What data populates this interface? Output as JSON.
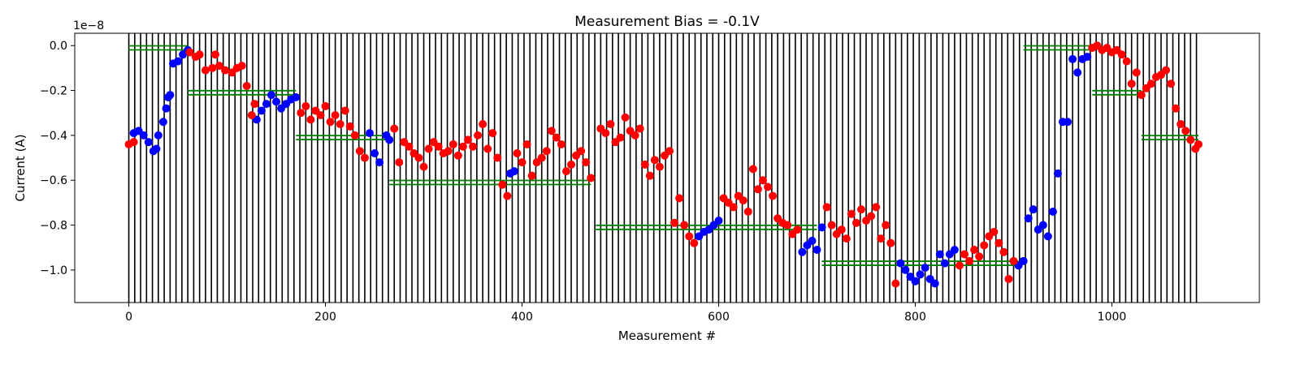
{
  "chart_data": {
    "type": "scatter",
    "title": "Measurement Bias = -0.1V",
    "xlabel": "Measurement #",
    "ylabel": "Current (A)",
    "y_offset_label": "1e−8",
    "xlim": [
      -55,
      1150
    ],
    "ylim": [
      -1.145,
      0.055
    ],
    "y_multiplier": 1e-08,
    "xticks": [
      0,
      200,
      400,
      600,
      800,
      1000
    ],
    "yticks": [
      0.0,
      -0.2,
      -0.4,
      -0.6,
      -0.8,
      -1.0
    ],
    "ytick_labels": [
      "0.0",
      "−0.2",
      "−0.4",
      "−0.6",
      "−0.8",
      "−1.0"
    ],
    "grid": false,
    "vertical_lines": {
      "color": "#000000",
      "start": 0,
      "end": 1088,
      "spacing": 6
    },
    "reference_segments": {
      "color": "#008000",
      "levels": [
        {
          "y": -0.01,
          "x0": 0,
          "x1": 60
        },
        {
          "y": -0.21,
          "x0": 60,
          "x1": 170
        },
        {
          "y": -0.41,
          "x0": 170,
          "x1": 265
        },
        {
          "y": -0.61,
          "x0": 265,
          "x1": 470
        },
        {
          "y": -0.81,
          "x0": 475,
          "x1": 700
        },
        {
          "y": -0.97,
          "x0": 705,
          "x1": 905
        },
        {
          "y": -0.01,
          "x0": 910,
          "x1": 980
        },
        {
          "y": -0.21,
          "x0": 980,
          "x1": 1030
        },
        {
          "y": -0.41,
          "x0": 1030,
          "x1": 1088
        }
      ]
    },
    "series": [
      {
        "color": "#0000ff",
        "points": [
          [
            5,
            -0.39
          ],
          [
            10,
            -0.38
          ],
          [
            15,
            -0.4
          ],
          [
            20,
            -0.43
          ],
          [
            25,
            -0.47
          ],
          [
            28,
            -0.46
          ],
          [
            30,
            -0.4
          ],
          [
            35,
            -0.34
          ],
          [
            38,
            -0.28
          ],
          [
            40,
            -0.23
          ],
          [
            42,
            -0.22
          ],
          [
            45,
            -0.08
          ],
          [
            50,
            -0.07
          ],
          [
            55,
            -0.04
          ],
          [
            60,
            -0.02
          ],
          [
            130,
            -0.33
          ],
          [
            135,
            -0.29
          ],
          [
            140,
            -0.26
          ],
          [
            145,
            -0.22
          ],
          [
            150,
            -0.25
          ],
          [
            155,
            -0.28
          ],
          [
            160,
            -0.26
          ],
          [
            165,
            -0.24
          ],
          [
            170,
            -0.23
          ],
          [
            245,
            -0.39
          ],
          [
            250,
            -0.48
          ],
          [
            255,
            -0.52
          ],
          [
            262,
            -0.4
          ],
          [
            265,
            -0.42
          ],
          [
            388,
            -0.57
          ],
          [
            392,
            -0.56
          ],
          [
            580,
            -0.85
          ],
          [
            585,
            -0.83
          ],
          [
            590,
            -0.82
          ],
          [
            595,
            -0.8
          ],
          [
            600,
            -0.78
          ],
          [
            685,
            -0.92
          ],
          [
            690,
            -0.89
          ],
          [
            695,
            -0.87
          ],
          [
            700,
            -0.91
          ],
          [
            705,
            -0.81
          ],
          [
            785,
            -0.97
          ],
          [
            790,
            -1.0
          ],
          [
            795,
            -1.03
          ],
          [
            800,
            -1.05
          ],
          [
            805,
            -1.02
          ],
          [
            810,
            -0.99
          ],
          [
            815,
            -1.04
          ],
          [
            820,
            -1.06
          ],
          [
            825,
            -0.93
          ],
          [
            830,
            -0.97
          ],
          [
            835,
            -0.93
          ],
          [
            840,
            -0.91
          ],
          [
            905,
            -0.98
          ],
          [
            910,
            -0.96
          ],
          [
            915,
            -0.77
          ],
          [
            920,
            -0.73
          ],
          [
            925,
            -0.82
          ],
          [
            930,
            -0.8
          ],
          [
            935,
            -0.85
          ],
          [
            940,
            -0.74
          ],
          [
            945,
            -0.57
          ],
          [
            950,
            -0.34
          ],
          [
            955,
            -0.34
          ],
          [
            960,
            -0.06
          ],
          [
            965,
            -0.12
          ],
          [
            970,
            -0.06
          ],
          [
            975,
            -0.05
          ]
        ]
      },
      {
        "color": "#ff0000",
        "points": [
          [
            0,
            -0.44
          ],
          [
            5,
            -0.43
          ],
          [
            62,
            -0.03
          ],
          [
            68,
            -0.05
          ],
          [
            72,
            -0.04
          ],
          [
            78,
            -0.11
          ],
          [
            85,
            -0.1
          ],
          [
            88,
            -0.04
          ],
          [
            92,
            -0.09
          ],
          [
            98,
            -0.11
          ],
          [
            105,
            -0.12
          ],
          [
            110,
            -0.1
          ],
          [
            115,
            -0.09
          ],
          [
            120,
            -0.18
          ],
          [
            125,
            -0.31
          ],
          [
            128,
            -0.26
          ],
          [
            175,
            -0.3
          ],
          [
            180,
            -0.27
          ],
          [
            185,
            -0.33
          ],
          [
            190,
            -0.29
          ],
          [
            195,
            -0.31
          ],
          [
            200,
            -0.27
          ],
          [
            205,
            -0.34
          ],
          [
            210,
            -0.31
          ],
          [
            215,
            -0.35
          ],
          [
            220,
            -0.29
          ],
          [
            225,
            -0.36
          ],
          [
            230,
            -0.4
          ],
          [
            235,
            -0.47
          ],
          [
            240,
            -0.5
          ],
          [
            270,
            -0.37
          ],
          [
            275,
            -0.52
          ],
          [
            280,
            -0.43
          ],
          [
            285,
            -0.45
          ],
          [
            290,
            -0.48
          ],
          [
            295,
            -0.5
          ],
          [
            300,
            -0.54
          ],
          [
            305,
            -0.46
          ],
          [
            310,
            -0.43
          ],
          [
            315,
            -0.45
          ],
          [
            320,
            -0.48
          ],
          [
            325,
            -0.47
          ],
          [
            330,
            -0.44
          ],
          [
            335,
            -0.49
          ],
          [
            340,
            -0.45
          ],
          [
            345,
            -0.42
          ],
          [
            350,
            -0.45
          ],
          [
            355,
            -0.4
          ],
          [
            360,
            -0.35
          ],
          [
            365,
            -0.46
          ],
          [
            370,
            -0.39
          ],
          [
            375,
            -0.5
          ],
          [
            380,
            -0.62
          ],
          [
            385,
            -0.67
          ],
          [
            395,
            -0.48
          ],
          [
            400,
            -0.52
          ],
          [
            405,
            -0.44
          ],
          [
            410,
            -0.58
          ],
          [
            415,
            -0.52
          ],
          [
            420,
            -0.5
          ],
          [
            425,
            -0.47
          ],
          [
            430,
            -0.38
          ],
          [
            435,
            -0.41
          ],
          [
            440,
            -0.44
          ],
          [
            445,
            -0.56
          ],
          [
            450,
            -0.53
          ],
          [
            455,
            -0.49
          ],
          [
            460,
            -0.47
          ],
          [
            465,
            -0.52
          ],
          [
            470,
            -0.59
          ],
          [
            480,
            -0.37
          ],
          [
            485,
            -0.39
          ],
          [
            490,
            -0.35
          ],
          [
            495,
            -0.43
          ],
          [
            500,
            -0.41
          ],
          [
            505,
            -0.32
          ],
          [
            510,
            -0.38
          ],
          [
            515,
            -0.4
          ],
          [
            520,
            -0.37
          ],
          [
            525,
            -0.53
          ],
          [
            530,
            -0.58
          ],
          [
            535,
            -0.51
          ],
          [
            540,
            -0.54
          ],
          [
            545,
            -0.49
          ],
          [
            550,
            -0.47
          ],
          [
            555,
            -0.79
          ],
          [
            560,
            -0.68
          ],
          [
            565,
            -0.8
          ],
          [
            570,
            -0.85
          ],
          [
            575,
            -0.88
          ],
          [
            605,
            -0.68
          ],
          [
            610,
            -0.7
          ],
          [
            615,
            -0.72
          ],
          [
            620,
            -0.67
          ],
          [
            625,
            -0.69
          ],
          [
            630,
            -0.74
          ],
          [
            635,
            -0.55
          ],
          [
            640,
            -0.64
          ],
          [
            645,
            -0.6
          ],
          [
            650,
            -0.63
          ],
          [
            655,
            -0.67
          ],
          [
            660,
            -0.77
          ],
          [
            665,
            -0.79
          ],
          [
            670,
            -0.8
          ],
          [
            675,
            -0.84
          ],
          [
            680,
            -0.82
          ],
          [
            710,
            -0.72
          ],
          [
            715,
            -0.8
          ],
          [
            720,
            -0.84
          ],
          [
            725,
            -0.82
          ],
          [
            730,
            -0.86
          ],
          [
            735,
            -0.75
          ],
          [
            740,
            -0.79
          ],
          [
            745,
            -0.73
          ],
          [
            750,
            -0.78
          ],
          [
            755,
            -0.76
          ],
          [
            760,
            -0.72
          ],
          [
            765,
            -0.86
          ],
          [
            770,
            -0.8
          ],
          [
            775,
            -0.88
          ],
          [
            780,
            -1.06
          ],
          [
            845,
            -0.98
          ],
          [
            850,
            -0.93
          ],
          [
            855,
            -0.96
          ],
          [
            860,
            -0.91
          ],
          [
            865,
            -0.94
          ],
          [
            870,
            -0.89
          ],
          [
            875,
            -0.85
          ],
          [
            880,
            -0.83
          ],
          [
            885,
            -0.88
          ],
          [
            890,
            -0.92
          ],
          [
            895,
            -1.04
          ],
          [
            900,
            -0.96
          ],
          [
            980,
            -0.01
          ],
          [
            985,
            0.0
          ],
          [
            990,
            -0.02
          ],
          [
            995,
            -0.01
          ],
          [
            1000,
            -0.03
          ],
          [
            1005,
            -0.02
          ],
          [
            1010,
            -0.04
          ],
          [
            1015,
            -0.07
          ],
          [
            1020,
            -0.17
          ],
          [
            1025,
            -0.12
          ],
          [
            1030,
            -0.22
          ],
          [
            1035,
            -0.19
          ],
          [
            1040,
            -0.17
          ],
          [
            1045,
            -0.14
          ],
          [
            1050,
            -0.13
          ],
          [
            1055,
            -0.11
          ],
          [
            1060,
            -0.17
          ],
          [
            1065,
            -0.28
          ],
          [
            1070,
            -0.35
          ],
          [
            1075,
            -0.38
          ],
          [
            1080,
            -0.42
          ],
          [
            1085,
            -0.46
          ],
          [
            1088,
            -0.44
          ]
        ]
      }
    ]
  }
}
